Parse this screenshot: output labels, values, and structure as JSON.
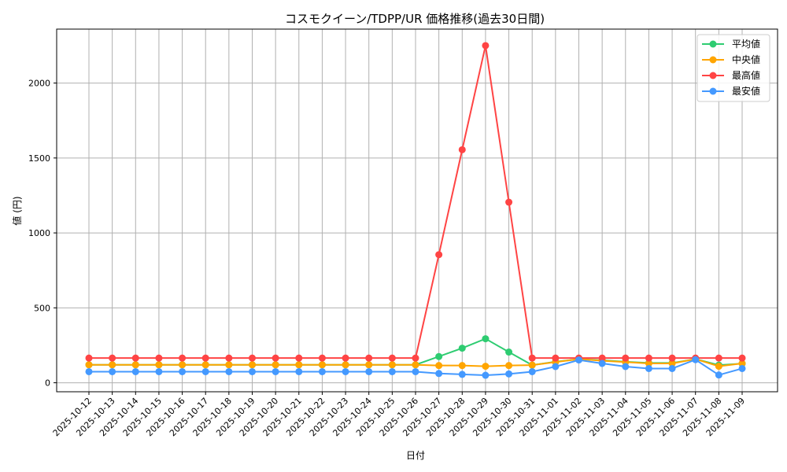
{
  "chart_data": {
    "type": "line",
    "title": "コスモクイーン/TDPP/UR 価格推移(過去30日間)",
    "xlabel": "日付",
    "ylabel": "値 (円)",
    "ylim": [
      -60,
      2360
    ],
    "yticks": [
      0,
      500,
      1000,
      1500,
      2000
    ],
    "grid": true,
    "legend_position": "top-right",
    "categories": [
      "2025-10-12",
      "2025-10-13",
      "2025-10-14",
      "2025-10-15",
      "2025-10-16",
      "2025-10-17",
      "2025-10-18",
      "2025-10-19",
      "2025-10-20",
      "2025-10-21",
      "2025-10-22",
      "2025-10-23",
      "2025-10-24",
      "2025-10-25",
      "2025-10-26",
      "2025-10-27",
      "2025-10-28",
      "2025-10-29",
      "2025-10-30",
      "2025-10-31",
      "2025-11-01",
      "2025-11-02",
      "2025-11-03",
      "2025-11-04",
      "2025-11-05",
      "2025-11-06",
      "2025-11-07",
      "2025-11-08",
      "2025-11-09"
    ],
    "series": [
      {
        "name": "平均値",
        "color": "#2ecc71",
        "values": [
          120,
          120,
          120,
          120,
          120,
          120,
          120,
          120,
          120,
          120,
          120,
          120,
          120,
          120,
          120,
          175,
          231,
          294,
          205,
          118,
          140,
          158,
          150,
          140,
          132,
          132,
          158,
          118,
          128
        ]
      },
      {
        "name": "中央値",
        "color": "#ffa500",
        "values": [
          120,
          120,
          120,
          120,
          120,
          120,
          120,
          120,
          120,
          120,
          120,
          120,
          120,
          120,
          120,
          115,
          115,
          110,
          115,
          118,
          138,
          158,
          147,
          138,
          129,
          129,
          158,
          110,
          129
        ]
      },
      {
        "name": "最高値",
        "color": "#ff4444",
        "values": [
          165,
          165,
          165,
          165,
          165,
          165,
          165,
          165,
          165,
          165,
          165,
          165,
          165,
          165,
          165,
          855,
          1555,
          2250,
          1205,
          165,
          165,
          165,
          165,
          165,
          165,
          165,
          165,
          165,
          165
        ]
      },
      {
        "name": "最安値",
        "color": "#4499ff",
        "values": [
          74,
          74,
          74,
          74,
          74,
          74,
          74,
          74,
          74,
          74,
          74,
          74,
          74,
          74,
          74,
          62,
          56,
          50,
          59,
          74,
          108,
          152,
          129,
          108,
          95,
          95,
          154,
          52,
          95
        ]
      }
    ]
  }
}
